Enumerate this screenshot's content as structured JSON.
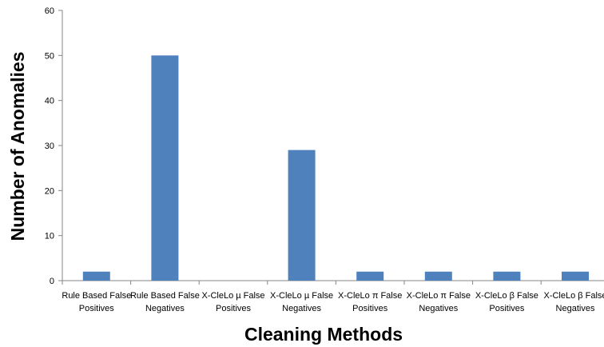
{
  "chart_data": {
    "type": "bar",
    "title": "",
    "xlabel": "Cleaning Methods",
    "ylabel": "Number of Anomalies",
    "ylim": [
      0,
      60
    ],
    "yticks": [
      0,
      10,
      20,
      30,
      40,
      50,
      60
    ],
    "grid": false,
    "legend": "none",
    "bar_color": "#4f81bd",
    "categories": [
      [
        "Rule Based False",
        "Positives"
      ],
      [
        "Rule Based False",
        "Negatives"
      ],
      [
        "X-CleLo µ False",
        "Positives"
      ],
      [
        "X-CleLo µ False",
        "Negatives"
      ],
      [
        "X-CleLo π False",
        "Positives"
      ],
      [
        "X-CleLo π False",
        "Negatives"
      ],
      [
        "X-CleLo β False",
        "Positives"
      ],
      [
        "X-CleLo β False",
        "Negatives"
      ]
    ],
    "values": [
      2,
      50,
      0,
      29,
      2,
      2,
      2,
      2
    ]
  }
}
